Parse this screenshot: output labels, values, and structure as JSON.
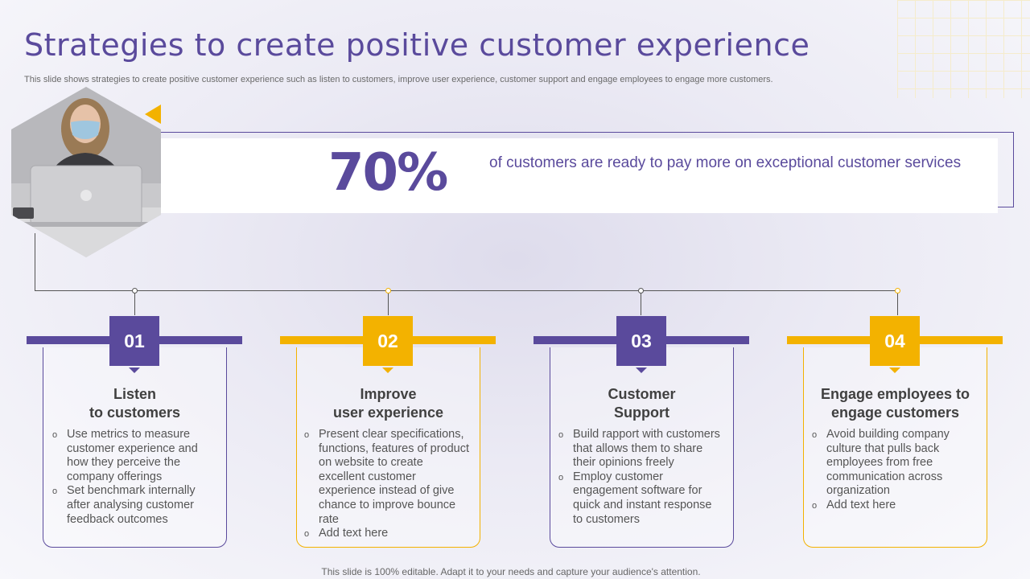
{
  "slide": {
    "title": "Strategies to create positive customer experience",
    "subtitle": "This slide shows strategies to create positive customer experience such as listen to customers, improve user experience, customer support and engage employees to engage more customers.",
    "footer": "This slide is 100% editable. Adapt it to your needs and capture your audience's attention."
  },
  "stat": {
    "value": "70%",
    "text": "of customers are ready to pay more on exceptional customer services"
  },
  "photo": {
    "icon": "laptop-user-photo"
  },
  "colors": {
    "purple": "#5a4a9c",
    "gold": "#f3b200"
  },
  "cards": [
    {
      "number": "01",
      "title_line1": "Listen",
      "title_line2": "to customers",
      "accent": "purple",
      "points": [
        "Use metrics to measure customer experience and how they perceive the company offerings",
        "Set benchmark internally after analysing customer feedback outcomes"
      ]
    },
    {
      "number": "02",
      "title_line1": "Improve",
      "title_line2": "user experience",
      "accent": "gold",
      "points": [
        "Present clear specifications, functions, features of product on website to create excellent customer experience instead of give chance to improve bounce rate",
        "Add text here"
      ]
    },
    {
      "number": "03",
      "title_line1": "Customer",
      "title_line2": "Support",
      "accent": "purple",
      "points": [
        "Build rapport with customers that allows them to share their opinions freely",
        "Employ customer engagement software for quick and instant response to customers"
      ]
    },
    {
      "number": "04",
      "title_line1": "Engage employees to",
      "title_line2": "engage customers",
      "accent": "gold",
      "points": [
        "Avoid building company culture that pulls back employees from free communication across organization",
        "Add text here"
      ]
    }
  ]
}
